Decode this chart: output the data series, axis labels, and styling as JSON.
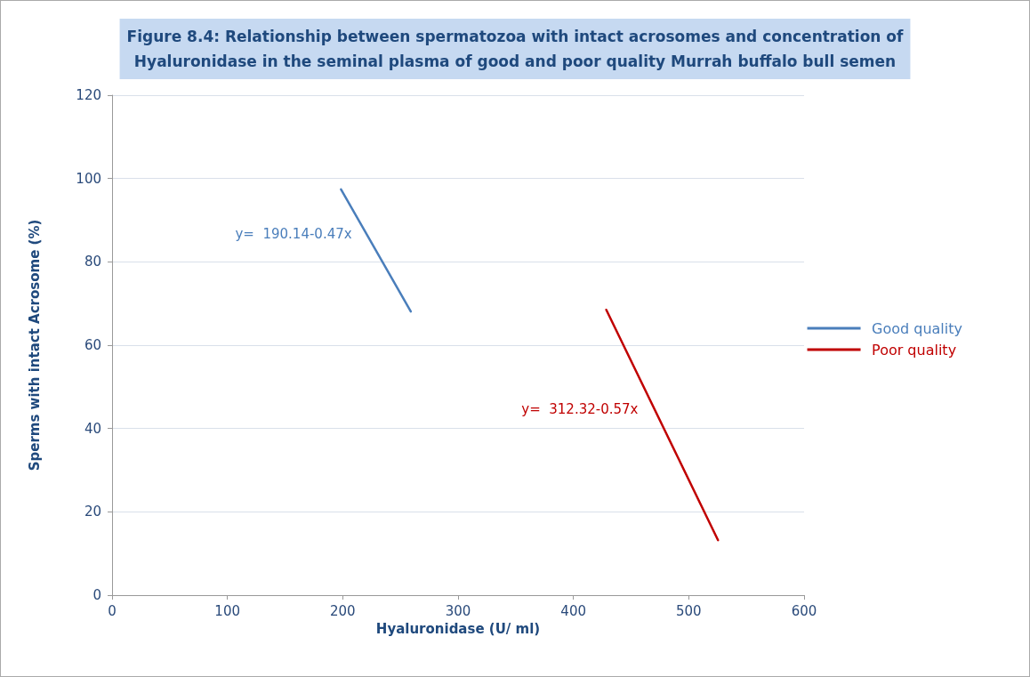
{
  "chart_data": {
    "type": "line",
    "title": "Figure 8.4: Relationship between spermatozoa with intact acrosomes and concentration of\nHyaluronidase in the seminal plasma of good and poor quality Murrah buffalo bull semen",
    "xlabel": "Hyaluronidase (U/ ml)",
    "ylabel": "Sperms with intact Acrosome (%)",
    "series": [
      {
        "name": "Good quality",
        "color": "#4a7ebb",
        "x": [
          198.5,
          259
        ],
        "values": [
          97.4,
          68.1
        ]
      },
      {
        "name": "Poor quality",
        "color": "#c00000",
        "x": [
          428.5,
          525.4
        ],
        "values": [
          68.5,
          13.2
        ]
      }
    ],
    "annotations": [
      "y=  190.14-0.47x",
      "y=  312.32-0.57x"
    ],
    "xlim": [
      0,
      600
    ],
    "xticks": [
      0,
      100,
      200,
      300,
      400,
      500,
      600
    ],
    "ylim": [
      0,
      120
    ],
    "yticks": [
      0,
      20,
      40,
      60,
      80,
      100,
      120
    ],
    "grid": "y",
    "legend": "right",
    "marker": "none",
    "line_style": "solid"
  }
}
